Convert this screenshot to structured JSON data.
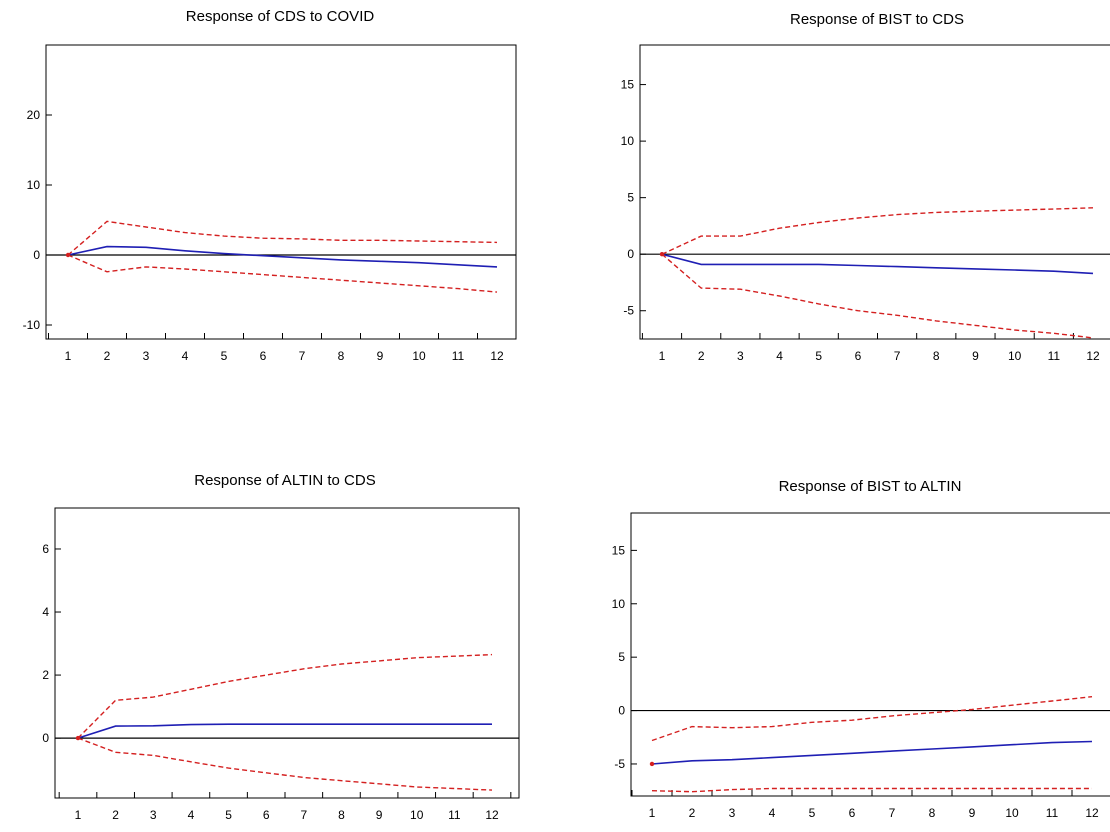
{
  "colors": {
    "response": "#1f1fb4",
    "band": "#d42020",
    "axis": "#000000",
    "zero": "#000000"
  },
  "chart_data": [
    {
      "type": "line",
      "title": "Response of CDS to COVID",
      "x": [
        1,
        2,
        3,
        4,
        5,
        6,
        7,
        8,
        9,
        10,
        11,
        12
      ],
      "ylim": [
        -12,
        30
      ],
      "yticks": [
        -10,
        0,
        10,
        20
      ],
      "grid": false,
      "series": [
        {
          "role": "response",
          "values": [
            0,
            1.2,
            1.1,
            0.6,
            0.2,
            -0.1,
            -0.4,
            -0.7,
            -0.9,
            -1.1,
            -1.4,
            -1.7
          ]
        },
        {
          "role": "upper",
          "values": [
            0,
            4.8,
            4.0,
            3.2,
            2.7,
            2.4,
            2.3,
            2.1,
            2.1,
            2.0,
            1.9,
            1.8
          ]
        },
        {
          "role": "lower",
          "values": [
            0,
            -2.4,
            -1.7,
            -2.0,
            -2.4,
            -2.8,
            -3.2,
            -3.6,
            -4.0,
            -4.4,
            -4.8,
            -5.3
          ]
        }
      ]
    },
    {
      "type": "line",
      "title": "Response of BIST to CDS",
      "x": [
        1,
        2,
        3,
        4,
        5,
        6,
        7,
        8,
        9,
        10,
        11,
        12
      ],
      "ylim": [
        -7.5,
        18.5
      ],
      "yticks": [
        -5,
        0,
        5,
        10,
        15
      ],
      "grid": false,
      "series": [
        {
          "role": "response",
          "values": [
            0,
            -0.9,
            -0.9,
            -0.9,
            -0.9,
            -1.0,
            -1.1,
            -1.2,
            -1.3,
            -1.4,
            -1.5,
            -1.7
          ]
        },
        {
          "role": "upper",
          "values": [
            0,
            1.6,
            1.6,
            2.3,
            2.8,
            3.2,
            3.5,
            3.7,
            3.8,
            3.9,
            4.0,
            4.1
          ]
        },
        {
          "role": "lower",
          "values": [
            0,
            -3.0,
            -3.1,
            -3.7,
            -4.4,
            -5.0,
            -5.4,
            -5.9,
            -6.3,
            -6.7,
            -7.0,
            -7.4
          ]
        }
      ]
    },
    {
      "type": "line",
      "title": "Response of ALTIN to CDS",
      "x": [
        1,
        2,
        3,
        4,
        5,
        6,
        7,
        8,
        9,
        10,
        11,
        12
      ],
      "ylim": [
        -1.9,
        7.3
      ],
      "yticks": [
        0,
        2,
        4,
        6
      ],
      "grid": false,
      "series": [
        {
          "role": "response",
          "values": [
            0,
            0.38,
            0.39,
            0.43,
            0.44,
            0.44,
            0.44,
            0.44,
            0.44,
            0.44,
            0.44,
            0.44
          ]
        },
        {
          "role": "upper",
          "values": [
            0,
            1.2,
            1.3,
            1.55,
            1.8,
            2.0,
            2.2,
            2.35,
            2.45,
            2.55,
            2.6,
            2.65
          ]
        },
        {
          "role": "lower",
          "values": [
            0,
            -0.45,
            -0.55,
            -0.75,
            -0.95,
            -1.1,
            -1.25,
            -1.35,
            -1.45,
            -1.55,
            -1.6,
            -1.65
          ]
        }
      ]
    },
    {
      "type": "line",
      "title": "Response of BIST to ALTIN",
      "x": [
        1,
        2,
        3,
        4,
        5,
        6,
        7,
        8,
        9,
        10,
        11,
        12
      ],
      "ylim": [
        -8,
        18.5
      ],
      "yticks": [
        -5,
        0,
        5,
        10,
        15
      ],
      "grid": false,
      "series": [
        {
          "role": "response",
          "values": [
            -5.0,
            -4.7,
            -4.6,
            -4.4,
            -4.2,
            -4.0,
            -3.8,
            -3.6,
            -3.4,
            -3.2,
            -3.0,
            -2.9
          ]
        },
        {
          "role": "upper",
          "values": [
            -2.8,
            -1.5,
            -1.6,
            -1.5,
            -1.1,
            -0.9,
            -0.5,
            -0.2,
            0.1,
            0.5,
            0.9,
            1.3
          ]
        },
        {
          "role": "lower",
          "values": [
            -7.5,
            -7.6,
            -7.4,
            -7.3,
            -7.3,
            -7.3,
            -7.3,
            -7.3,
            -7.3,
            -7.3,
            -7.3,
            -7.3
          ]
        }
      ]
    }
  ]
}
